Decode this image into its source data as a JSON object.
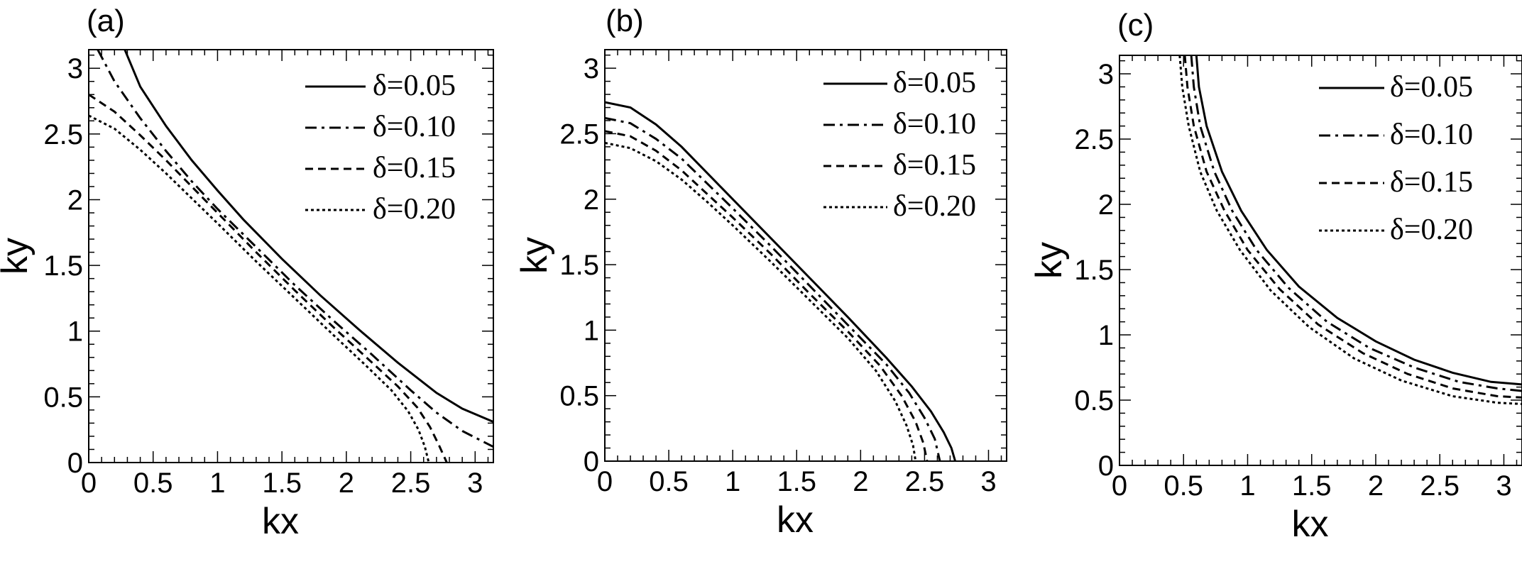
{
  "chart_data": [
    {
      "type": "line",
      "panel_label": "(a)",
      "xlabel": "kx",
      "ylabel": "ky",
      "xlim": [
        0,
        3.1416
      ],
      "ylim": [
        0,
        3.1416
      ],
      "x_ticks": [
        "0",
        "0.5",
        "1",
        "1.5",
        "2",
        "2.5",
        "3"
      ],
      "y_ticks": [
        "0",
        "0.5",
        "1",
        "1.5",
        "2",
        "2.5",
        "3"
      ],
      "legend_position": "top-right",
      "series": [
        {
          "name": "δ=0.05",
          "style": "solid",
          "points": [
            [
              0.28,
              3.1416
            ],
            [
              0.4,
              2.86
            ],
            [
              0.6,
              2.56
            ],
            [
              0.8,
              2.3
            ],
            [
              1.0,
              2.07
            ],
            [
              1.2,
              1.85
            ],
            [
              1.5,
              1.55
            ],
            [
              1.8,
              1.27
            ],
            [
              2.1,
              1.01
            ],
            [
              2.4,
              0.76
            ],
            [
              2.7,
              0.53
            ],
            [
              2.9,
              0.41
            ],
            [
              3.1416,
              0.31
            ]
          ]
        },
        {
          "name": "δ=0.10",
          "style": "dash-dot",
          "points": [
            [
              0.07,
              3.1416
            ],
            [
              0.2,
              2.9
            ],
            [
              0.4,
              2.62
            ],
            [
              0.6,
              2.37
            ],
            [
              0.8,
              2.14
            ],
            [
              1.0,
              1.93
            ],
            [
              1.3,
              1.64
            ],
            [
              1.6,
              1.35
            ],
            [
              1.9,
              1.08
            ],
            [
              2.2,
              0.82
            ],
            [
              2.5,
              0.55
            ],
            [
              2.7,
              0.38
            ],
            [
              2.9,
              0.24
            ],
            [
              3.1416,
              0.12
            ]
          ]
        },
        {
          "name": "δ=0.15",
          "style": "dashed",
          "points": [
            [
              0.0,
              2.8
            ],
            [
              0.2,
              2.67
            ],
            [
              0.4,
              2.49
            ],
            [
              0.6,
              2.3
            ],
            [
              0.8,
              2.1
            ],
            [
              1.0,
              1.9
            ],
            [
              1.3,
              1.6
            ],
            [
              1.6,
              1.31
            ],
            [
              1.9,
              1.03
            ],
            [
              2.2,
              0.76
            ],
            [
              2.4,
              0.58
            ],
            [
              2.55,
              0.42
            ],
            [
              2.65,
              0.27
            ],
            [
              2.72,
              0.13
            ],
            [
              2.78,
              0.0
            ]
          ]
        },
        {
          "name": "δ=0.20",
          "style": "dotted",
          "points": [
            [
              0.0,
              2.64
            ],
            [
              0.2,
              2.54
            ],
            [
              0.4,
              2.38
            ],
            [
              0.6,
              2.2
            ],
            [
              0.8,
              2.01
            ],
            [
              1.0,
              1.82
            ],
            [
              1.3,
              1.53
            ],
            [
              1.6,
              1.25
            ],
            [
              1.9,
              0.97
            ],
            [
              2.15,
              0.74
            ],
            [
              2.35,
              0.55
            ],
            [
              2.48,
              0.39
            ],
            [
              2.56,
              0.25
            ],
            [
              2.61,
              0.12
            ],
            [
              2.64,
              0.0
            ]
          ]
        }
      ]
    },
    {
      "type": "line",
      "panel_label": "(b)",
      "xlabel": "kx",
      "ylabel": "ky",
      "xlim": [
        0,
        3.1416
      ],
      "ylim": [
        0,
        3.1416
      ],
      "x_ticks": [
        "0",
        "0.5",
        "1",
        "1.5",
        "2",
        "2.5",
        "3"
      ],
      "y_ticks": [
        "0",
        "0.5",
        "1",
        "1.5",
        "2",
        "2.5",
        "3"
      ],
      "legend_position": "top-right",
      "series": [
        {
          "name": "δ=0.05",
          "style": "solid",
          "points": [
            [
              0.0,
              2.74
            ],
            [
              0.2,
              2.7
            ],
            [
              0.4,
              2.57
            ],
            [
              0.6,
              2.4
            ],
            [
              0.8,
              2.2
            ],
            [
              1.0,
              2.0
            ],
            [
              1.3,
              1.7
            ],
            [
              1.6,
              1.4
            ],
            [
              1.9,
              1.1
            ],
            [
              2.2,
              0.79
            ],
            [
              2.4,
              0.57
            ],
            [
              2.55,
              0.38
            ],
            [
              2.65,
              0.22
            ],
            [
              2.71,
              0.1
            ],
            [
              2.74,
              0.0
            ]
          ]
        },
        {
          "name": "δ=0.10",
          "style": "dash-dot",
          "points": [
            [
              0.0,
              2.62
            ],
            [
              0.2,
              2.58
            ],
            [
              0.4,
              2.46
            ],
            [
              0.6,
              2.31
            ],
            [
              0.8,
              2.12
            ],
            [
              1.0,
              1.93
            ],
            [
              1.3,
              1.64
            ],
            [
              1.6,
              1.34
            ],
            [
              1.9,
              1.04
            ],
            [
              2.2,
              0.74
            ],
            [
              2.38,
              0.52
            ],
            [
              2.5,
              0.33
            ],
            [
              2.58,
              0.17
            ],
            [
              2.62,
              0.0
            ]
          ]
        },
        {
          "name": "δ=0.15",
          "style": "dashed",
          "points": [
            [
              0.0,
              2.52
            ],
            [
              0.2,
              2.48
            ],
            [
              0.4,
              2.37
            ],
            [
              0.6,
              2.22
            ],
            [
              0.8,
              2.04
            ],
            [
              1.0,
              1.86
            ],
            [
              1.3,
              1.58
            ],
            [
              1.6,
              1.28
            ],
            [
              1.9,
              0.99
            ],
            [
              2.15,
              0.73
            ],
            [
              2.32,
              0.5
            ],
            [
              2.43,
              0.3
            ],
            [
              2.49,
              0.14
            ],
            [
              2.52,
              0.0
            ]
          ]
        },
        {
          "name": "δ=0.20",
          "style": "dotted",
          "points": [
            [
              0.0,
              2.43
            ],
            [
              0.2,
              2.39
            ],
            [
              0.4,
              2.29
            ],
            [
              0.6,
              2.15
            ],
            [
              0.8,
              1.98
            ],
            [
              1.0,
              1.8
            ],
            [
              1.3,
              1.52
            ],
            [
              1.6,
              1.23
            ],
            [
              1.9,
              0.94
            ],
            [
              2.12,
              0.69
            ],
            [
              2.27,
              0.46
            ],
            [
              2.36,
              0.27
            ],
            [
              2.41,
              0.12
            ],
            [
              2.43,
              0.0
            ]
          ]
        }
      ]
    },
    {
      "type": "line",
      "panel_label": "(c)",
      "xlabel": "kx",
      "ylabel": "ky",
      "xlim": [
        0,
        3.1416
      ],
      "ylim": [
        0,
        3.1416
      ],
      "x_ticks": [
        "0",
        "0.5",
        "1",
        "1.5",
        "2",
        "2.5",
        "3"
      ],
      "y_ticks": [
        "0",
        "0.5",
        "1",
        "1.5",
        "2",
        "2.5",
        "3"
      ],
      "legend_position": "top-right",
      "series": [
        {
          "name": "δ=0.05",
          "style": "solid",
          "points": [
            [
              0.6,
              3.1416
            ],
            [
              0.62,
              2.9
            ],
            [
              0.68,
              2.6
            ],
            [
              0.8,
              2.25
            ],
            [
              0.95,
              1.95
            ],
            [
              1.15,
              1.65
            ],
            [
              1.4,
              1.37
            ],
            [
              1.7,
              1.13
            ],
            [
              2.0,
              0.95
            ],
            [
              2.3,
              0.81
            ],
            [
              2.6,
              0.71
            ],
            [
              2.9,
              0.64
            ],
            [
              3.1416,
              0.62
            ]
          ]
        },
        {
          "name": "δ=0.10",
          "style": "dash-dot",
          "points": [
            [
              0.56,
              3.1416
            ],
            [
              0.58,
              2.9
            ],
            [
              0.63,
              2.6
            ],
            [
              0.74,
              2.25
            ],
            [
              0.88,
              1.95
            ],
            [
              1.07,
              1.65
            ],
            [
              1.32,
              1.36
            ],
            [
              1.62,
              1.1
            ],
            [
              1.95,
              0.9
            ],
            [
              2.3,
              0.75
            ],
            [
              2.65,
              0.64
            ],
            [
              2.95,
              0.59
            ],
            [
              3.1416,
              0.57
            ]
          ]
        },
        {
          "name": "δ=0.15",
          "style": "dashed",
          "points": [
            [
              0.51,
              3.1416
            ],
            [
              0.53,
              2.9
            ],
            [
              0.58,
              2.6
            ],
            [
              0.68,
              2.25
            ],
            [
              0.82,
              1.95
            ],
            [
              1.0,
              1.65
            ],
            [
              1.25,
              1.35
            ],
            [
              1.55,
              1.08
            ],
            [
              1.9,
              0.86
            ],
            [
              2.25,
              0.7
            ],
            [
              2.6,
              0.59
            ],
            [
              2.95,
              0.53
            ],
            [
              3.1416,
              0.52
            ]
          ]
        },
        {
          "name": "δ=0.20",
          "style": "dotted",
          "points": [
            [
              0.47,
              3.1416
            ],
            [
              0.49,
              2.9
            ],
            [
              0.54,
              2.6
            ],
            [
              0.63,
              2.25
            ],
            [
              0.76,
              1.95
            ],
            [
              0.94,
              1.65
            ],
            [
              1.18,
              1.34
            ],
            [
              1.48,
              1.06
            ],
            [
              1.83,
              0.82
            ],
            [
              2.2,
              0.65
            ],
            [
              2.6,
              0.53
            ],
            [
              2.95,
              0.48
            ],
            [
              3.1416,
              0.47
            ]
          ]
        }
      ]
    }
  ]
}
